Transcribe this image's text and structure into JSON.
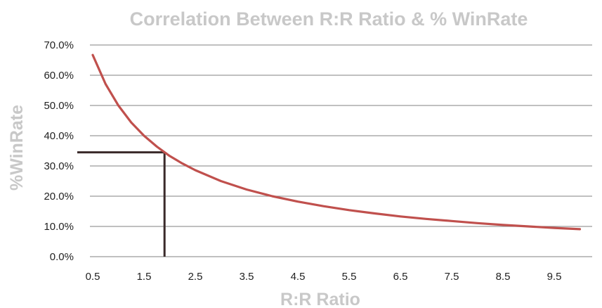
{
  "chart_data": {
    "type": "line",
    "title": "Correlation Between R:R Ratio & % WinRate",
    "xlabel": "R:R Ratio",
    "ylabel": "%WinRate",
    "x_ticks": [
      "0.5",
      "1.5",
      "2.5",
      "3.5",
      "4.5",
      "5.5",
      "6.5",
      "7.5",
      "8.5",
      "9.5"
    ],
    "y_ticks": [
      "0.0%",
      "10.0%",
      "20.0%",
      "30.0%",
      "40.0%",
      "50.0%",
      "60.0%",
      "70.0%"
    ],
    "xlim": [
      0.5,
      10.0
    ],
    "ylim": [
      0,
      70
    ],
    "grid": "horizontal",
    "series": [
      {
        "color": "#c0504d",
        "x": [
          0.5,
          0.75,
          1.0,
          1.25,
          1.5,
          1.75,
          2.0,
          2.25,
          2.5,
          3.0,
          3.5,
          4.0,
          4.5,
          5.0,
          5.5,
          6.0,
          6.5,
          7.0,
          7.5,
          8.0,
          8.5,
          9.0,
          9.5,
          10.0
        ],
        "y": [
          66.7,
          57.1,
          50.0,
          44.4,
          40.0,
          36.4,
          33.3,
          30.8,
          28.6,
          25.0,
          22.2,
          20.0,
          18.2,
          16.7,
          15.4,
          14.3,
          13.3,
          12.5,
          11.8,
          11.1,
          10.5,
          10.0,
          9.5,
          9.1
        ]
      }
    ],
    "annotation": {
      "color": "#3a2a2a",
      "x": 1.9,
      "y": 34.5
    }
  }
}
